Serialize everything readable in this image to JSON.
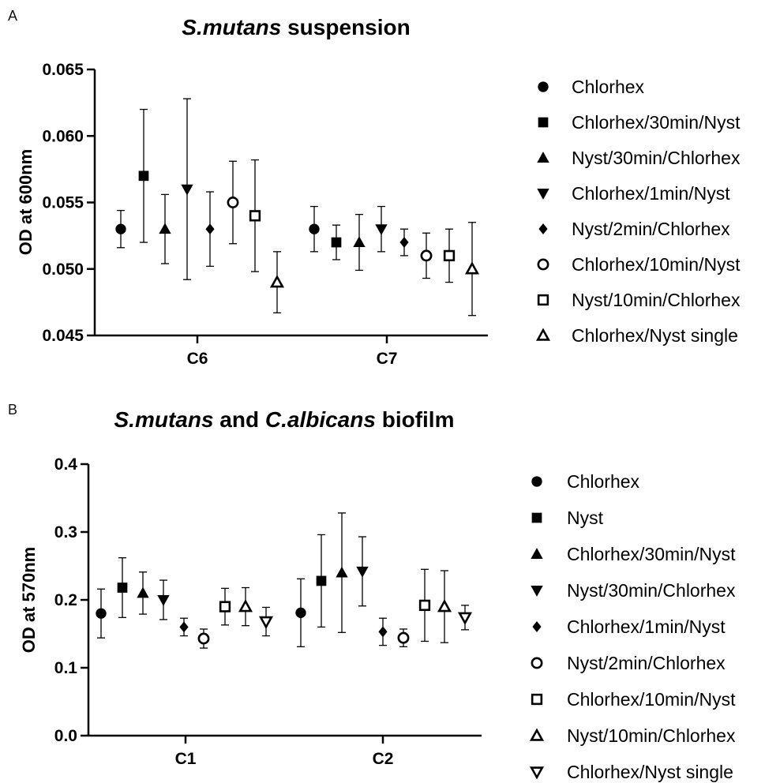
{
  "chart_data": [
    {
      "panel": "A",
      "type": "scatter",
      "title": "S.mutans suspension",
      "title_italic_part": "S.mutans",
      "title_rest": " suspension",
      "xlabel": "",
      "ylabel": "OD at 600nm",
      "ylim": [
        0.045,
        0.065
      ],
      "yticks": [
        "0.045",
        "0.050",
        "0.055",
        "0.060",
        "0.065"
      ],
      "yticks_values": [
        0.045,
        0.05,
        0.055,
        0.06,
        0.065
      ],
      "categories": [
        "C6",
        "C7"
      ],
      "grid": false,
      "legend_position": "right",
      "series": [
        {
          "name": "Chlorhex",
          "marker": "circle",
          "fill": "filled",
          "values": [
            0.053,
            0.053
          ],
          "err": [
            0.0014,
            0.0017
          ]
        },
        {
          "name": "Chlorhex/30min/Nyst",
          "marker": "square",
          "fill": "filled",
          "values": [
            0.057,
            0.052
          ],
          "err": [
            0.005,
            0.0013
          ]
        },
        {
          "name": "Nyst/30min/Chlorhex",
          "marker": "triangle-up",
          "fill": "filled",
          "values": [
            0.053,
            0.052
          ],
          "err": [
            0.0026,
            0.0021
          ]
        },
        {
          "name": "Chlorhex/1min/Nyst",
          "marker": "triangle-down",
          "fill": "filled",
          "values": [
            0.056,
            0.053
          ],
          "err": [
            0.0068,
            0.0017
          ]
        },
        {
          "name": "Nyst/2min/Chlorhex",
          "marker": "diamond",
          "fill": "filled",
          "values": [
            0.053,
            0.052
          ],
          "err": [
            0.0028,
            0.001
          ]
        },
        {
          "name": "Chlorhex/10min/Nyst",
          "marker": "circle",
          "fill": "open",
          "values": [
            0.055,
            0.051
          ],
          "err": [
            0.0031,
            0.0017
          ]
        },
        {
          "name": "Nyst/10min/Chlorhex",
          "marker": "square",
          "fill": "open",
          "values": [
            0.054,
            0.051
          ],
          "err": [
            0.0042,
            0.002
          ]
        },
        {
          "name": "Chlorhex/Nyst single",
          "marker": "triangle-up",
          "fill": "open",
          "values": [
            0.049,
            0.05
          ],
          "err": [
            0.0023,
            0.0035
          ]
        }
      ]
    },
    {
      "panel": "B",
      "type": "scatter",
      "title": "S.mutans and C.albicans biofilm",
      "title_parts": [
        "S.mutans",
        " and ",
        "C.albicans",
        " biofilm"
      ],
      "xlabel": "",
      "ylabel": "OD at 570nm",
      "ylim": [
        0.0,
        0.4
      ],
      "yticks": [
        "0.0",
        "0.1",
        "0.2",
        "0.3",
        "0.4"
      ],
      "yticks_values": [
        0.0,
        0.1,
        0.2,
        0.3,
        0.4
      ],
      "categories": [
        "C1",
        "C2"
      ],
      "grid": false,
      "legend_position": "right",
      "series": [
        {
          "name": "Chlorhex",
          "marker": "circle",
          "fill": "filled",
          "values": [
            0.18,
            0.181
          ],
          "err": [
            0.036,
            0.05
          ]
        },
        {
          "name": "Nyst",
          "marker": "square",
          "fill": "filled",
          "values": [
            0.218,
            0.228
          ],
          "err": [
            0.044,
            0.068
          ]
        },
        {
          "name": "Chlorhex/30min/Nyst",
          "marker": "triangle-up",
          "fill": "filled",
          "values": [
            0.21,
            0.24
          ],
          "err": [
            0.031,
            0.088
          ]
        },
        {
          "name": "Nyst/30min/Chlorhex",
          "marker": "triangle-down",
          "fill": "filled",
          "values": [
            0.2,
            0.242
          ],
          "err": [
            0.029,
            0.051
          ]
        },
        {
          "name": "Chlorhex/1min/Nyst",
          "marker": "diamond",
          "fill": "filled",
          "values": [
            0.16,
            0.153
          ],
          "err": [
            0.013,
            0.02
          ]
        },
        {
          "name": "Nyst/2min/Chlorhex",
          "marker": "circle",
          "fill": "open",
          "values": [
            0.143,
            0.144
          ],
          "err": [
            0.014,
            0.013
          ]
        },
        {
          "name": "Chlorhex/10min/Nyst",
          "marker": "square",
          "fill": "open",
          "values": [
            0.19,
            0.192
          ],
          "err": [
            0.027,
            0.053
          ]
        },
        {
          "name": "Nyst/10min/Chlorhex",
          "marker": "triangle-up",
          "fill": "open",
          "values": [
            0.19,
            0.19
          ],
          "err": [
            0.028,
            0.053
          ]
        },
        {
          "name": "Chlorhex/Nyst single",
          "marker": "triangle-down",
          "fill": "open",
          "values": [
            0.168,
            0.174
          ],
          "err": [
            0.021,
            0.018
          ]
        }
      ]
    }
  ]
}
